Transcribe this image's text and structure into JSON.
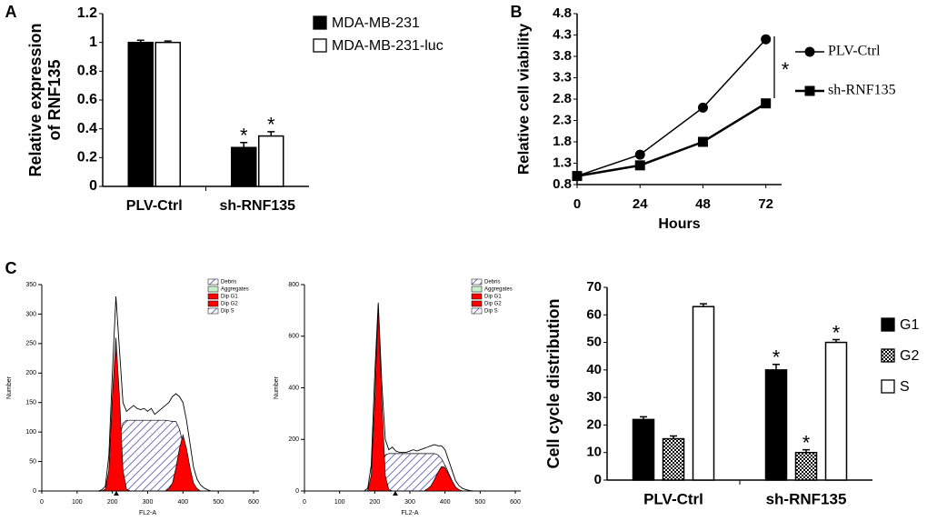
{
  "chart_data": [
    {
      "type": "bar",
      "panel": "A",
      "ylabel": [
        "Relative expression",
        "of RNF135"
      ],
      "categories": [
        "PLV-Ctrl",
        "sh-RNF135"
      ],
      "series": [
        {
          "name": "MDA-MB-231",
          "color": "#000000",
          "values": [
            1.0,
            0.27
          ],
          "errors": [
            0.015,
            0.035
          ],
          "significance": [
            null,
            "*"
          ]
        },
        {
          "name": "MDA-MB-231-luc",
          "color": "#ffffff",
          "values": [
            1.0,
            0.35
          ],
          "errors": [
            0.01,
            0.03
          ],
          "significance": [
            null,
            "*"
          ]
        }
      ],
      "ylim": [
        0,
        1.2
      ],
      "yticks": [
        0,
        0.2,
        0.4,
        0.6,
        0.8,
        1,
        1.2
      ],
      "legend": "top-right"
    },
    {
      "type": "line",
      "panel": "B",
      "xlabel": "Hours",
      "ylabel": "Relative cell viability",
      "x": [
        0,
        24,
        48,
        72
      ],
      "series": [
        {
          "name": "PLV-Ctrl",
          "color": "#000000",
          "marker": "circle",
          "values": [
            1.0,
            1.5,
            2.6,
            4.2
          ]
        },
        {
          "name": "sh-RNF135",
          "color": "#000000",
          "marker": "square",
          "values": [
            1.0,
            1.25,
            1.8,
            2.7
          ]
        }
      ],
      "xlim": [
        0,
        78
      ],
      "xticks": [
        0,
        24,
        48,
        72
      ],
      "ylim": [
        0.8,
        4.8
      ],
      "yticks": [
        0.8,
        1.3,
        1.8,
        2.3,
        2.8,
        3.3,
        3.8,
        4.3,
        4.8
      ],
      "annotation": "*",
      "legend": "right"
    },
    {
      "type": "flow",
      "panel": "C",
      "xlabel": "FL2-A",
      "ylabel": "Number",
      "x": [
        150,
        160,
        170,
        180,
        190,
        200,
        210,
        220,
        230,
        240,
        250,
        260,
        270,
        280,
        290,
        300,
        310,
        320,
        330,
        340,
        350,
        360,
        370,
        380,
        390,
        400,
        410,
        420,
        430,
        440,
        450,
        460,
        470,
        480
      ],
      "extra_legend": [
        {
          "name": "Debris",
          "color": "#3030a0",
          "pattern": "hatch"
        },
        {
          "name": "Aggregates",
          "color": "#c8f0c8"
        }
      ],
      "series": [
        {
          "name": "Dip G1",
          "color": "#ff0000",
          "fill": true,
          "values": [
            0,
            0,
            0,
            3,
            35,
            160,
            260,
            160,
            35,
            3,
            0,
            0,
            0,
            0,
            0,
            0,
            0,
            0,
            0,
            0,
            0,
            0,
            0,
            0,
            0,
            0,
            0,
            0,
            0,
            0,
            0,
            0,
            0,
            0
          ]
        },
        {
          "name": "Dip G2",
          "color": "#ff0000",
          "fill": true,
          "values": [
            0,
            0,
            0,
            0,
            0,
            0,
            0,
            0,
            0,
            0,
            0,
            0,
            0,
            0,
            0,
            0,
            0,
            0,
            0,
            0,
            0,
            4,
            13,
            39,
            72,
            95,
            72,
            39,
            13,
            4,
            0,
            0,
            0,
            0
          ]
        },
        {
          "name": "Dip S",
          "color": "#3030a0",
          "pattern": "hatch",
          "fill": true,
          "values": [
            0,
            0,
            0,
            0,
            0,
            0,
            40,
            90,
            115,
            120,
            120,
            120,
            120,
            120,
            120,
            120,
            120,
            120,
            120,
            120,
            120,
            119,
            118,
            118,
            105,
            80,
            40,
            10,
            0,
            0,
            0,
            0,
            0,
            0
          ]
        },
        {
          "color": "#000000",
          "values": [
            0,
            0,
            2,
            8,
            60,
            200,
            330,
            240,
            150,
            135,
            140,
            145,
            140,
            138,
            140,
            135,
            140,
            130,
            135,
            140,
            145,
            150,
            160,
            165,
            160,
            150,
            120,
            80,
            40,
            20,
            10,
            5,
            2,
            0
          ]
        }
      ],
      "xlim": [
        0,
        600
      ],
      "xticks": [
        0,
        100,
        200,
        300,
        400,
        500,
        600
      ],
      "ylim": [
        0,
        350
      ],
      "yticks": [
        0,
        50,
        100,
        150,
        200,
        250,
        300,
        350
      ]
    },
    {
      "type": "flow",
      "xlabel": "FL2-A",
      "ylabel": "Number",
      "x": [
        150,
        160,
        170,
        180,
        190,
        200,
        210,
        220,
        230,
        240,
        250,
        260,
        270,
        280,
        290,
        300,
        310,
        320,
        330,
        340,
        350,
        360,
        370,
        380,
        390,
        400,
        410,
        420,
        430,
        440,
        450,
        460,
        470,
        480
      ],
      "extra_legend": [
        {
          "name": "Debris",
          "color": "#3030a0",
          "pattern": "hatch"
        },
        {
          "name": "Aggregates",
          "color": "#c8f0c8"
        }
      ],
      "series": [
        {
          "name": "Dip G1",
          "color": "#ff0000",
          "fill": true,
          "values": [
            0,
            0,
            0,
            0,
            60,
            350,
            720,
            350,
            60,
            5,
            0,
            0,
            0,
            0,
            0,
            0,
            0,
            0,
            0,
            0,
            0,
            0,
            0,
            0,
            0,
            0,
            0,
            0,
            0,
            0,
            0,
            0,
            0,
            0
          ]
        },
        {
          "name": "Dip G2",
          "color": "#ff0000",
          "fill": true,
          "values": [
            0,
            0,
            0,
            0,
            0,
            0,
            0,
            0,
            0,
            0,
            0,
            0,
            0,
            0,
            0,
            0,
            0,
            0,
            0,
            0,
            8,
            20,
            45,
            72,
            95,
            90,
            65,
            38,
            15,
            5,
            0,
            0,
            0,
            0
          ]
        },
        {
          "name": "Dip S",
          "color": "#3030a0",
          "pattern": "hatch",
          "fill": true,
          "values": [
            0,
            0,
            0,
            0,
            0,
            0,
            30,
            100,
            140,
            145,
            145,
            145,
            145,
            145,
            145,
            145,
            145,
            145,
            145,
            145,
            145,
            145,
            145,
            140,
            125,
            100,
            70,
            40,
            15,
            0,
            0,
            0,
            0,
            0
          ]
        },
        {
          "color": "#000000",
          "values": [
            0,
            0,
            0,
            10,
            100,
            450,
            730,
            420,
            200,
            160,
            170,
            155,
            150,
            150,
            150,
            155,
            160,
            155,
            160,
            165,
            170,
            175,
            180,
            175,
            175,
            160,
            120,
            80,
            40,
            20,
            10,
            5,
            2,
            0
          ]
        }
      ],
      "xlim": [
        0,
        600
      ],
      "xticks": [
        0,
        100,
        200,
        300,
        400,
        500,
        600
      ],
      "ylim": [
        0,
        800
      ],
      "yticks": [
        0,
        200,
        400,
        600,
        800
      ]
    },
    {
      "type": "bar",
      "ylabel": [
        "Cell cycle distribution"
      ],
      "categories": [
        "PLV-Ctrl",
        "sh-RNF135"
      ],
      "series": [
        {
          "name": "G1",
          "color": "#000000",
          "values": [
            22,
            40
          ],
          "errors": [
            1,
            2
          ],
          "significance": [
            null,
            "*"
          ]
        },
        {
          "name": "G2",
          "color": "#000000",
          "pattern": "checker",
          "values": [
            15,
            10
          ],
          "errors": [
            1,
            1
          ],
          "significance": [
            null,
            "*"
          ]
        },
        {
          "name": "S",
          "color": "#ffffff",
          "values": [
            63,
            50
          ],
          "errors": [
            1,
            1
          ],
          "significance": [
            null,
            "*"
          ]
        }
      ],
      "ylim": [
        0,
        70
      ],
      "yticks": [
        0,
        10,
        20,
        30,
        40,
        50,
        60,
        70
      ],
      "legend": "right"
    }
  ]
}
